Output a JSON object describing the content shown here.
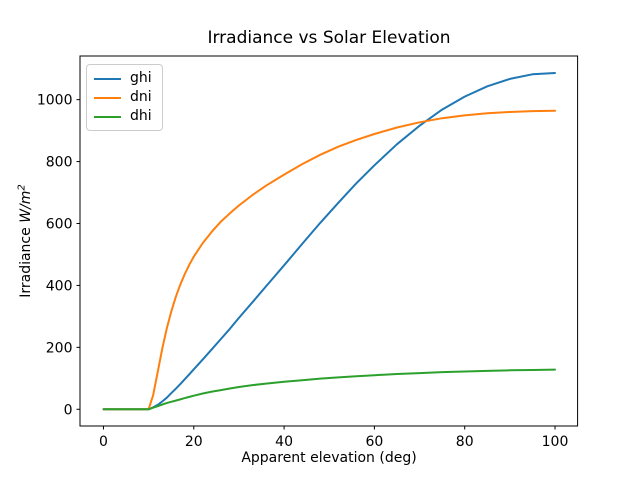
{
  "figure": {
    "background": "#ffffff",
    "text_color": "#000000"
  },
  "chart_data": {
    "type": "line",
    "title": "Irradiance vs Solar Elevation",
    "xlabel": "Apparent elevation (deg)",
    "ylabel": "Irradiance W/m²",
    "ylabel_parts": {
      "prefix": "Irradiance",
      "unit": "W/m",
      "exponent": "2"
    },
    "xlim": [
      -5.2,
      105
    ],
    "ylim": [
      -54,
      1141
    ],
    "xticks": [
      0,
      20,
      40,
      60,
      80,
      100
    ],
    "yticks": [
      0,
      200,
      400,
      600,
      800,
      1000
    ],
    "grid": false,
    "legend_position": "upper-left",
    "x": [
      0,
      5,
      10,
      11,
      12,
      13,
      14,
      15,
      16,
      17,
      18,
      19,
      20,
      22,
      24,
      26,
      28,
      30,
      33,
      36,
      40,
      44,
      48,
      52,
      56,
      60,
      65,
      70,
      75,
      80,
      85,
      90,
      95,
      100
    ],
    "series": [
      {
        "name": "ghi",
        "color": "#1f77b4",
        "values": [
          0,
          0,
          0,
          6,
          14,
          25,
          37,
          52,
          66,
          81,
          97,
          113,
          129,
          161,
          194,
          227,
          260,
          295,
          346,
          397,
          465,
          534,
          602,
          667,
          730,
          788,
          856,
          916,
          968,
          1010,
          1043,
          1067,
          1082,
          1086
        ]
      },
      {
        "name": "dni",
        "color": "#ff7f0e",
        "values": [
          0,
          0,
          0,
          45,
          120,
          195,
          260,
          315,
          362,
          402,
          437,
          467,
          493,
          537,
          574,
          606,
          633,
          658,
          692,
          722,
          758,
          792,
          822,
          848,
          870,
          889,
          910,
          927,
          940,
          949,
          956,
          960,
          963,
          964
        ]
      },
      {
        "name": "dhi",
        "color": "#2ca02c",
        "values": [
          0,
          0,
          0,
          5,
          10,
          15,
          20,
          24,
          28,
          32,
          36,
          40,
          44,
          51,
          57,
          62,
          67,
          72,
          78,
          83,
          89,
          94,
          99,
          103,
          107,
          110,
          114,
          117,
          120,
          122,
          124,
          126,
          127,
          128
        ]
      }
    ]
  }
}
